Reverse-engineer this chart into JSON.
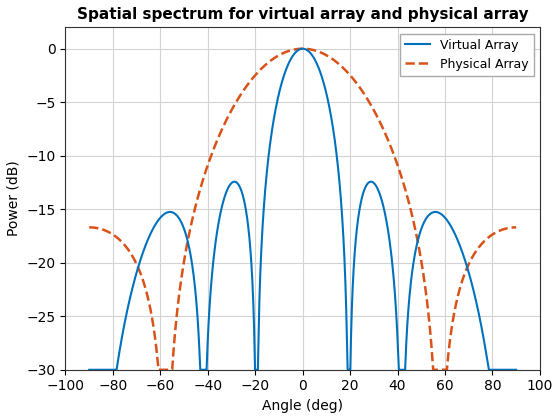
{
  "title": "Spatial spectrum for virtual array and physical array",
  "xlabel": "Angle (deg)",
  "ylabel": "Power (dB)",
  "xlim": [
    -100,
    100
  ],
  "ylim": [
    -30,
    2
  ],
  "yticks": [
    0,
    -5,
    -10,
    -15,
    -20,
    -25,
    -30
  ],
  "xticks": [
    -100,
    -80,
    -60,
    -40,
    -20,
    0,
    20,
    40,
    60,
    80,
    100
  ],
  "virtual_color": "#0072BD",
  "physical_color": "#D95319",
  "virtual_linewidth": 1.5,
  "physical_linewidth": 1.8,
  "physical_linestyle": "--",
  "virtual_label": "Virtual Array",
  "physical_label": "Physical Array",
  "background_color": "#ffffff",
  "grid_color": "#d3d3d3"
}
